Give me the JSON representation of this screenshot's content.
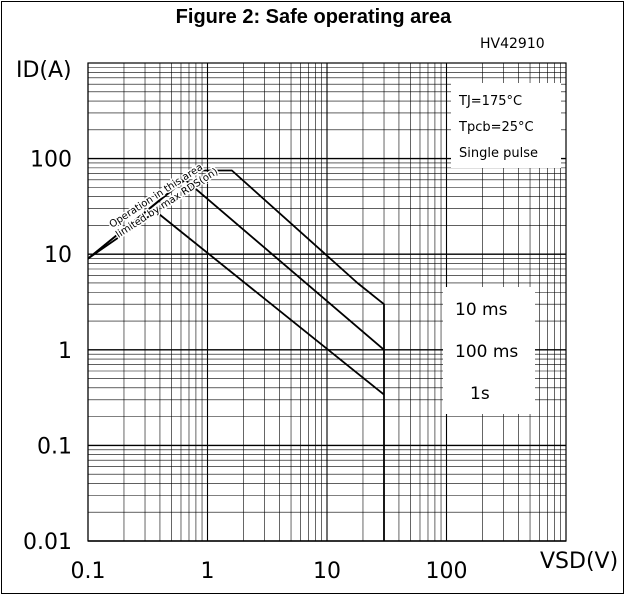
{
  "chart_data": {
    "type": "line",
    "title": "Figure 2: Safe operating area",
    "code": "HV42910",
    "xlabel": "VSD(V)",
    "ylabel": "ID(A)",
    "x_scale": "log",
    "y_scale": "log",
    "xlim": [
      0.1,
      1000
    ],
    "ylim": [
      0.01,
      1000
    ],
    "x_ticks": [
      "0.1",
      "1",
      "10",
      "100"
    ],
    "y_ticks": [
      "100",
      "10",
      "1",
      "0.1",
      "0.01"
    ],
    "grid": true,
    "conditions": [
      "TJ=175°C",
      "Tpcb=25°C",
      "Single pulse"
    ],
    "rds_note": [
      "Operation in this area",
      "limited by max RDS(on)"
    ],
    "series": [
      {
        "name": "10 ms",
        "points": [
          [
            0.1,
            9
          ],
          [
            0.8,
            75
          ],
          [
            1.6,
            75
          ],
          [
            18,
            5
          ],
          [
            30,
            3
          ],
          [
            30,
            0.01
          ]
        ]
      },
      {
        "name": "100 ms",
        "points": [
          [
            0.1,
            9
          ],
          [
            0.65,
            60
          ],
          [
            30,
            1
          ]
        ]
      },
      {
        "name": "1s",
        "points": [
          [
            0.1,
            9
          ],
          [
            0.37,
            28
          ],
          [
            30,
            0.34
          ]
        ]
      }
    ]
  }
}
